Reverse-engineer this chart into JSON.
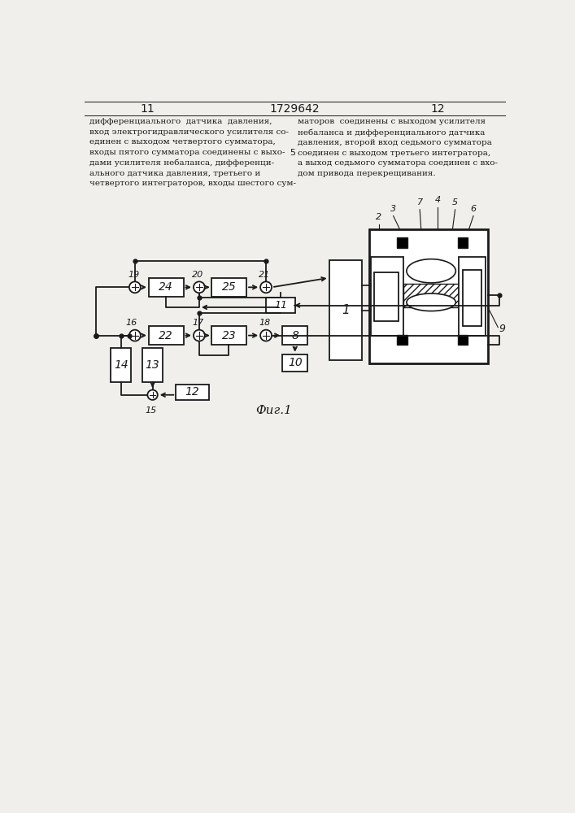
{
  "bg_color": "#f0efeb",
  "line_color": "#1a1a1a",
  "page_number_left": "11",
  "page_number_center": "1729642",
  "page_number_right": "12",
  "text_left": "дифференциального  датчика  давления,\nвход электрогидравлического усилителя со-\nединен с выходом четвертого сумматора,\nвходы пятого сумматора соединены с выхо-\nдами усилителя небаланса, дифференци-\nального датчика давления, третьего и\nчетвертого интеграторов, входы шестого сум-",
  "text_right": "маторов  соединены с выходом усилителя\nнебаланса и дифференциального датчика\nдавления, второй вход седьмого сумматора\nсоединен с выходом третьего интегратора,\nа выход седьмого сумматора соединен с вхо-\nдом привода перекрещивания.",
  "fig_label": "Фиг.1",
  "line_num": "5"
}
